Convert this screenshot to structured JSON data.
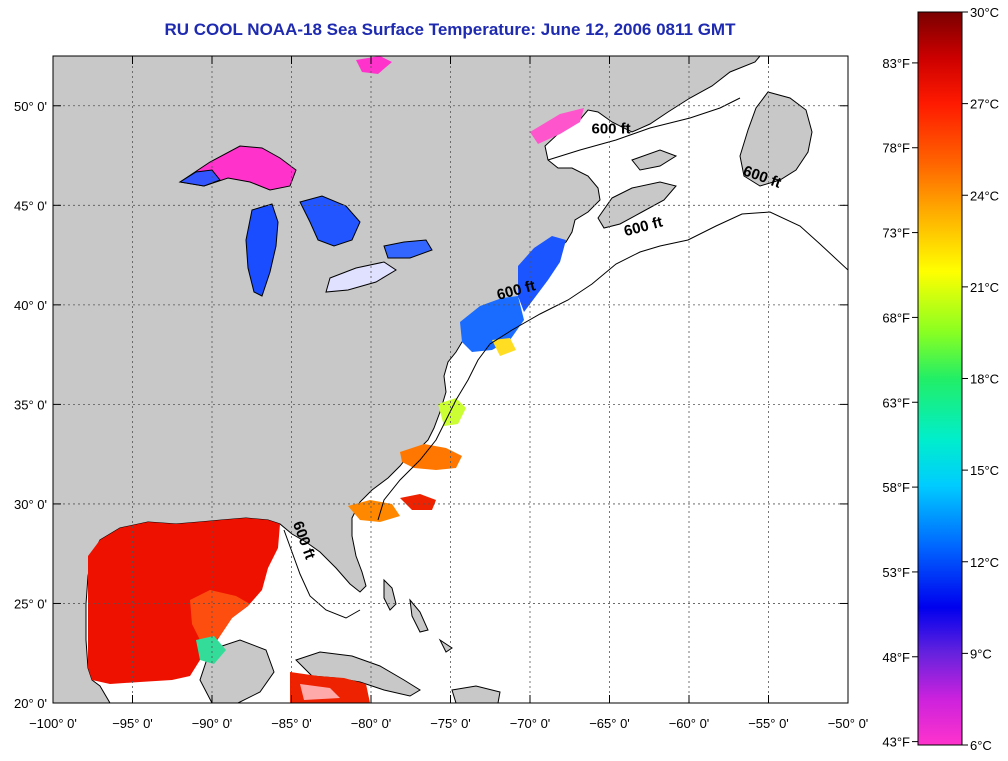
{
  "title": "RU COOL  NOAA-18  Sea Surface Temperature:  June 12, 2006 0811 GMT",
  "map": {
    "lon_range": [
      -100,
      -50
    ],
    "lat_range": [
      20,
      52.5
    ],
    "lon_ticks": [
      -100,
      -95,
      -90,
      -85,
      -80,
      -75,
      -70,
      -65,
      -60,
      -55,
      -50
    ],
    "lat_ticks": [
      20,
      25,
      30,
      35,
      40,
      45,
      50
    ],
    "lon_labels": [
      "−100° 0'",
      "−95° 0'",
      "−90° 0'",
      "−85° 0'",
      "−80° 0'",
      "−75° 0'",
      "−70° 0'",
      "−65° 0'",
      "−60° 0'",
      "−55° 0'",
      "−50° 0'"
    ],
    "lat_labels": [
      "20° 0'",
      "25° 0'",
      "30° 0'",
      "35° 0'",
      "40° 0'",
      "45° 0'",
      "50° 0'"
    ],
    "grid": true,
    "land_color": "#c8c8c8",
    "ocean_nodata_color": "#ffffff",
    "depth_label": "600 ft",
    "depth_labels": [
      {
        "text": "600 ft",
        "lon": -64.9,
        "lat": 48.6,
        "rotate": 0
      },
      {
        "text": "600 ft",
        "lon": -55.5,
        "lat": 46.2,
        "rotate": 20
      },
      {
        "text": "600 ft",
        "lon": -62.8,
        "lat": 43.7,
        "rotate": -15
      },
      {
        "text": "600 ft",
        "lon": -70.8,
        "lat": 40.5,
        "rotate": -15
      },
      {
        "text": "600 ft",
        "lon": -84.5,
        "lat": 28.1,
        "rotate": 70
      }
    ]
  },
  "colorbar": {
    "min_c": 6,
    "max_c": 30,
    "celsius_labels": [
      {
        "value": 30,
        "label": "30°C"
      },
      {
        "value": 27,
        "label": "27°C"
      },
      {
        "value": 24,
        "label": "24°C"
      },
      {
        "value": 21,
        "label": "21°C"
      },
      {
        "value": 18,
        "label": "18°C"
      },
      {
        "value": 15,
        "label": "15°C"
      },
      {
        "value": 12,
        "label": "12°C"
      },
      {
        "value": 9,
        "label": "9°C"
      },
      {
        "value": 6,
        "label": "6°C"
      }
    ],
    "fahrenheit_labels": [
      {
        "value": 83,
        "label": "83°F"
      },
      {
        "value": 78,
        "label": "78°F"
      },
      {
        "value": 73,
        "label": "73°F"
      },
      {
        "value": 68,
        "label": "68°F"
      },
      {
        "value": 63,
        "label": "63°F"
      },
      {
        "value": 58,
        "label": "58°F"
      },
      {
        "value": 53,
        "label": "53°F"
      },
      {
        "value": 48,
        "label": "48°F"
      },
      {
        "value": 43,
        "label": "43°F"
      }
    ],
    "color_stops": [
      {
        "c": 30,
        "color": "#7a0000"
      },
      {
        "c": 28.5,
        "color": "#cc0000"
      },
      {
        "c": 27,
        "color": "#ff1a00"
      },
      {
        "c": 25,
        "color": "#ff6600"
      },
      {
        "c": 23.5,
        "color": "#ffaa00"
      },
      {
        "c": 21.5,
        "color": "#ffff00"
      },
      {
        "c": 19.5,
        "color": "#88ff22"
      },
      {
        "c": 18,
        "color": "#22ee66"
      },
      {
        "c": 16,
        "color": "#00eecc"
      },
      {
        "c": 14.5,
        "color": "#00ccff"
      },
      {
        "c": 12.5,
        "color": "#0066ff"
      },
      {
        "c": 10.5,
        "color": "#0000ee"
      },
      {
        "c": 9,
        "color": "#6622dd"
      },
      {
        "c": 7.5,
        "color": "#cc22dd"
      },
      {
        "c": 6,
        "color": "#ff33cc"
      }
    ]
  }
}
